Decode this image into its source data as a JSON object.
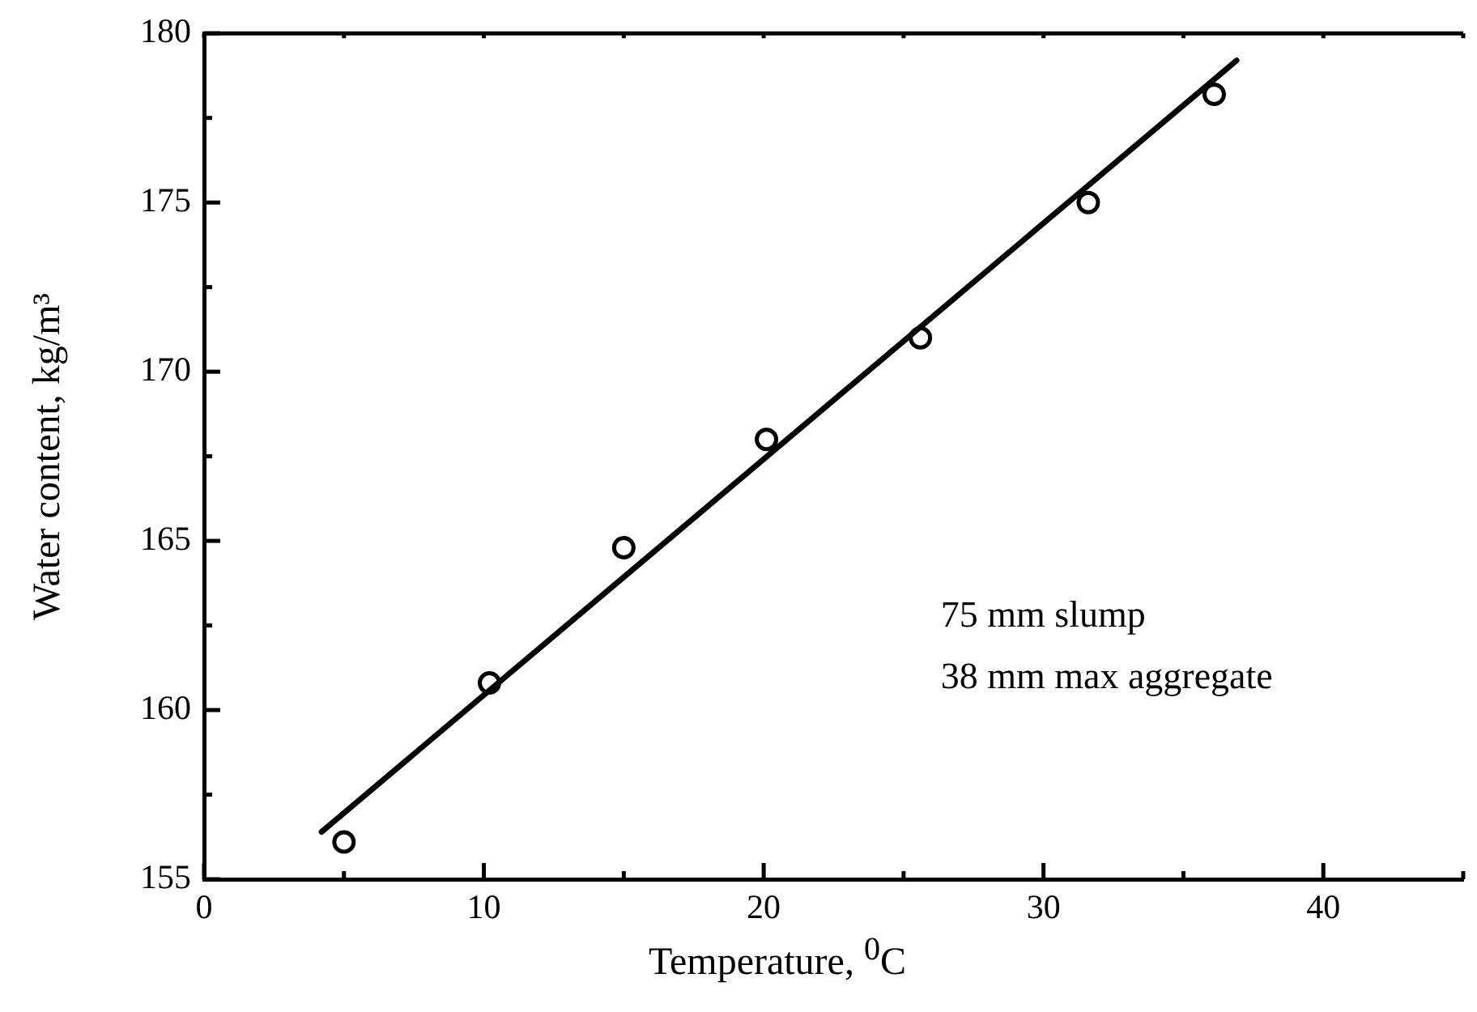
{
  "chart_data": {
    "type": "scatter",
    "xlabel": "Temperature, $^{0}$C",
    "ylabel": "Water content, kg/m³",
    "xlim": [
      0,
      45
    ],
    "ylim": [
      155,
      180
    ],
    "xticks": [
      0,
      {
        "value": 5,
        "label": null
      },
      10,
      {
        "value": 15,
        "label": null
      },
      20,
      {
        "value": 25,
        "label": null
      },
      30,
      {
        "value": 35,
        "label": null
      },
      40,
      {
        "value": 45,
        "label": null
      }
    ],
    "yticks": [
      155,
      {
        "value": 157.5,
        "label": null
      },
      160,
      {
        "value": 162.5,
        "label": null
      },
      165,
      {
        "value": 167.5,
        "label": null
      },
      170,
      {
        "value": 172.5,
        "label": null
      },
      175,
      {
        "value": 177.5,
        "label": null
      },
      180
    ],
    "grid": false,
    "legend": false,
    "marker": "circle",
    "series": [
      {
        "color": "#000000",
        "x": [
          5,
          10.2,
          15,
          20.1,
          25.6,
          31.6,
          36.1
        ],
        "values": [
          156.1,
          160.8,
          164.8,
          168.0,
          171.0,
          175.0,
          178.2
        ]
      },
      {
        "type": "line",
        "color": "#000000",
        "x": [
          4.2,
          36.9
        ],
        "values": [
          156.4,
          179.2
        ],
        "marker": "none",
        "line_style": "solid"
      }
    ],
    "annotations": [
      "75 mm slump",
      "38 mm max aggregate"
    ]
  }
}
